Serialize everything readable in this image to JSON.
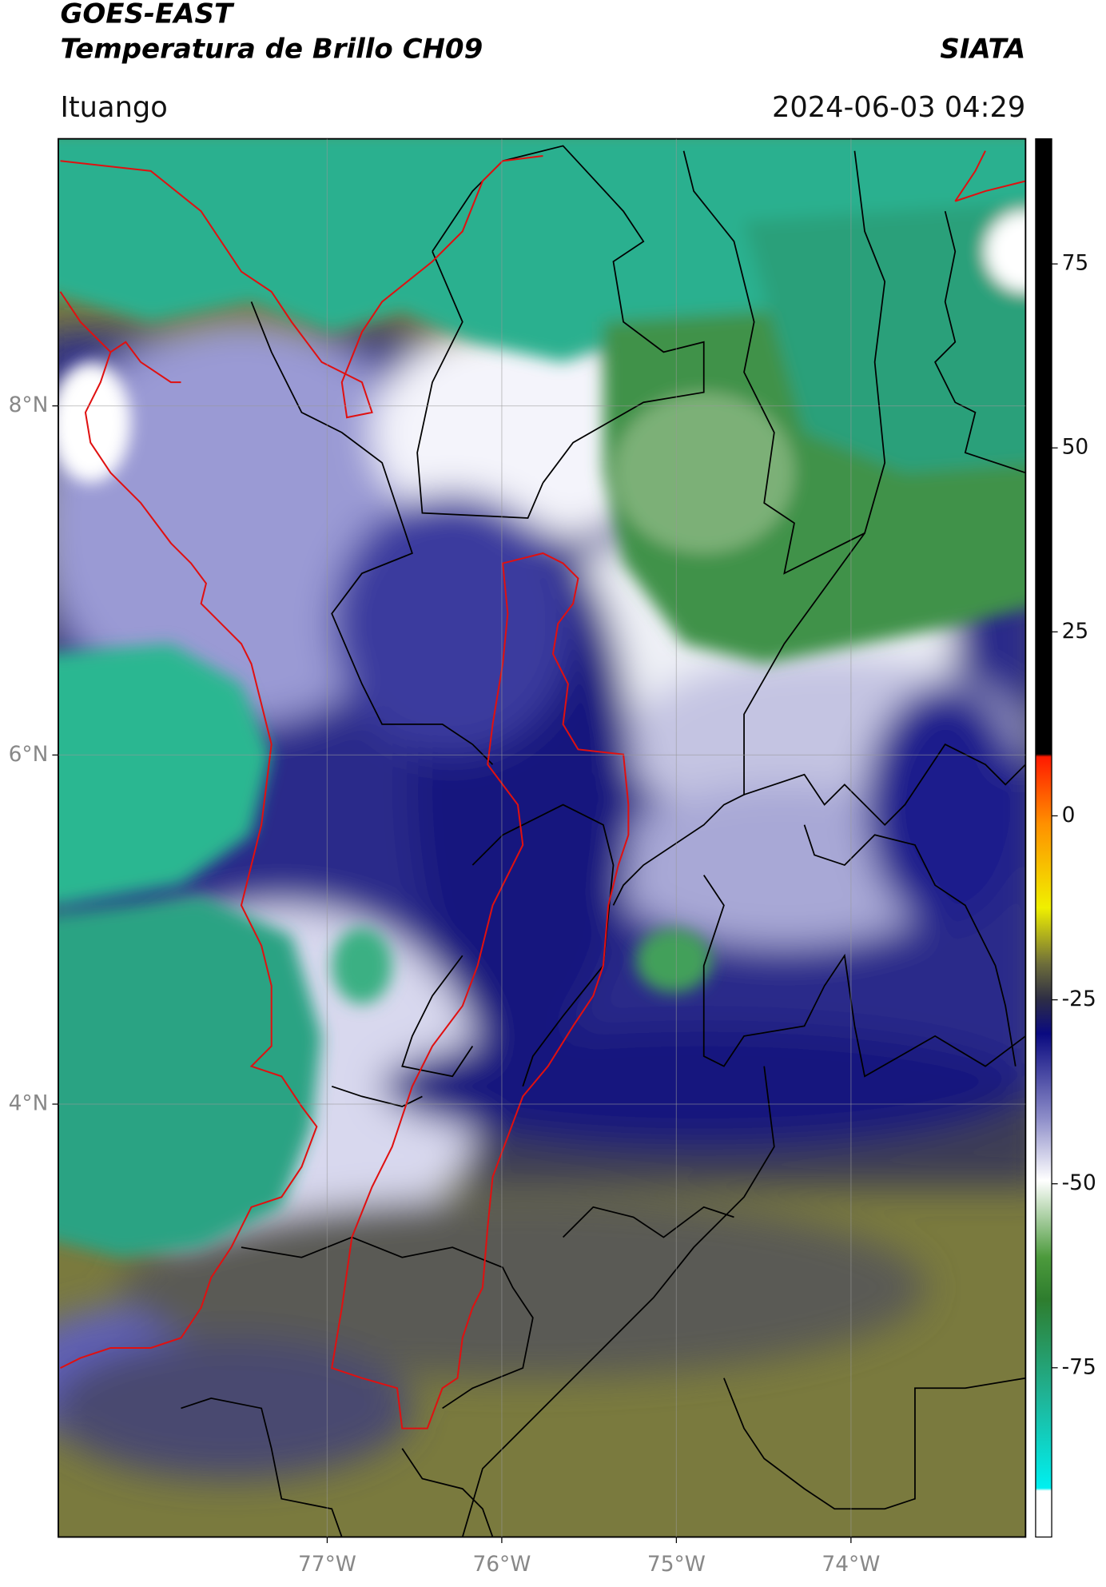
{
  "header": {
    "title": "GOES-EAST",
    "subtitle": "Temperatura de Brillo CH09",
    "brand": "SIATA",
    "location": "Ituango",
    "datetime": "2024-06-03 04:29"
  },
  "map": {
    "lonlim": [
      -78.54,
      -73.0
    ],
    "latlim": [
      1.52,
      9.53
    ],
    "lonticks": [
      {
        "value": -77,
        "label": "77°W"
      },
      {
        "value": -76,
        "label": "76°W"
      },
      {
        "value": -75,
        "label": "75°W"
      },
      {
        "value": -74,
        "label": "74°W"
      }
    ],
    "latticks": [
      {
        "value": 8,
        "label": "8°N"
      },
      {
        "value": 6,
        "label": "6°N"
      },
      {
        "value": 4,
        "label": "4°N"
      }
    ],
    "grid": true
  },
  "colorbar": {
    "clim": [
      -98,
      92
    ],
    "ticks": [
      75,
      50,
      25,
      0,
      -25,
      -50,
      -75
    ]
  }
}
